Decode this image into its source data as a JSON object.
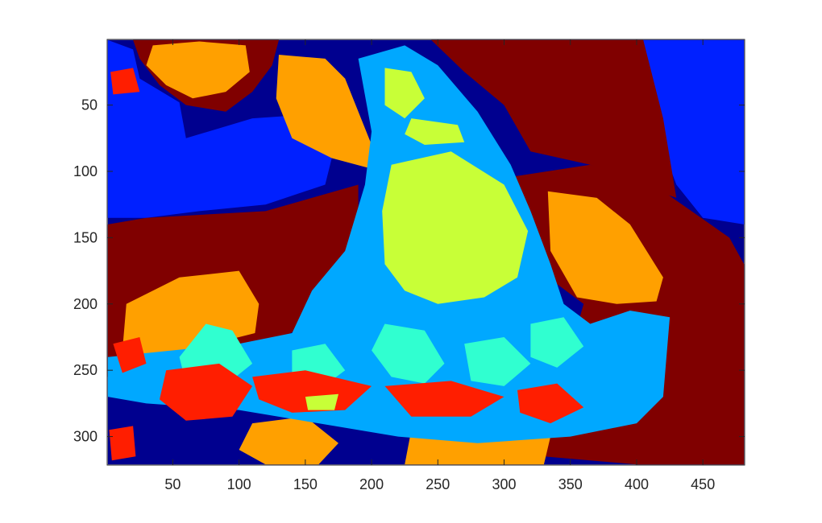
{
  "chart_data": {
    "type": "heatmap",
    "title": "",
    "xlabel": "",
    "ylabel": "",
    "xlim": [
      0.5,
      481.5
    ],
    "ylim": [
      0.5,
      321.5
    ],
    "y_direction": "reverse",
    "x_ticks": [
      50,
      100,
      150,
      200,
      250,
      300,
      350,
      400,
      450
    ],
    "x_tick_labels": [
      "50",
      "100",
      "150",
      "200",
      "250",
      "300",
      "350",
      "400",
      "450"
    ],
    "y_ticks": [
      50,
      100,
      150,
      200,
      250,
      300
    ],
    "y_tick_labels": [
      "50",
      "100",
      "150",
      "200",
      "250",
      "300"
    ],
    "grid": false,
    "colorbar": false,
    "colormap": "jet",
    "class_colors": [
      "#00008f",
      "#0020ff",
      "#00a8ff",
      "#30ffd0",
      "#c8ff37",
      "#ffa000",
      "#ff1e00",
      "#800000"
    ],
    "regions": [
      {
        "class": 0,
        "points": [
          [
            1,
            1
          ],
          [
            481,
            1
          ],
          [
            481,
            321
          ],
          [
            1,
            321
          ]
        ]
      },
      {
        "class": 1,
        "points": [
          [
            1,
            1
          ],
          [
            20,
            8
          ],
          [
            25,
            30
          ],
          [
            55,
            48
          ],
          [
            60,
            75
          ],
          [
            110,
            60
          ],
          [
            140,
            58
          ],
          [
            160,
            70
          ],
          [
            170,
            90
          ],
          [
            165,
            110
          ],
          [
            120,
            125
          ],
          [
            70,
            130
          ],
          [
            30,
            135
          ],
          [
            1,
            135
          ]
        ]
      },
      {
        "class": 1,
        "points": [
          [
            405,
            1
          ],
          [
            481,
            1
          ],
          [
            481,
            140
          ],
          [
            450,
            135
          ],
          [
            430,
            110
          ],
          [
            415,
            70
          ]
        ]
      },
      {
        "class": 7,
        "points": [
          [
            20,
            1
          ],
          [
            130,
            1
          ],
          [
            125,
            20
          ],
          [
            110,
            40
          ],
          [
            90,
            55
          ],
          [
            60,
            50
          ],
          [
            40,
            35
          ],
          [
            25,
            15
          ]
        ]
      },
      {
        "class": 7,
        "points": [
          [
            245,
            1
          ],
          [
            405,
            1
          ],
          [
            420,
            60
          ],
          [
            430,
            120
          ],
          [
            400,
            110
          ],
          [
            365,
            95
          ],
          [
            320,
            85
          ],
          [
            300,
            50
          ],
          [
            270,
            25
          ]
        ]
      },
      {
        "class": 7,
        "points": [
          [
            1,
            140
          ],
          [
            30,
            135
          ],
          [
            120,
            130
          ],
          [
            190,
            110
          ],
          [
            190,
            130
          ],
          [
            188,
            160
          ],
          [
            170,
            185
          ],
          [
            150,
            215
          ],
          [
            110,
            240
          ],
          [
            40,
            255
          ],
          [
            1,
            255
          ]
        ]
      },
      {
        "class": 7,
        "points": [
          [
            300,
            105
          ],
          [
            365,
            95
          ],
          [
            420,
            115
          ],
          [
            470,
            150
          ],
          [
            481,
            170
          ],
          [
            481,
            321
          ],
          [
            400,
            321
          ],
          [
            330,
            315
          ],
          [
            310,
            290
          ],
          [
            330,
            250
          ],
          [
            350,
            235
          ],
          [
            360,
            200
          ],
          [
            340,
            185
          ],
          [
            320,
            175
          ],
          [
            310,
            150
          ]
        ]
      },
      {
        "class": 5,
        "points": [
          [
            35,
            5
          ],
          [
            70,
            2
          ],
          [
            105,
            5
          ],
          [
            108,
            25
          ],
          [
            90,
            40
          ],
          [
            65,
            45
          ],
          [
            45,
            35
          ],
          [
            30,
            20
          ]
        ]
      },
      {
        "class": 5,
        "points": [
          [
            130,
            12
          ],
          [
            165,
            15
          ],
          [
            180,
            30
          ],
          [
            200,
            80
          ],
          [
            200,
            98
          ],
          [
            170,
            90
          ],
          [
            140,
            75
          ],
          [
            128,
            45
          ]
        ]
      },
      {
        "class": 5,
        "points": [
          [
            333,
            115
          ],
          [
            370,
            120
          ],
          [
            395,
            140
          ],
          [
            420,
            180
          ],
          [
            415,
            198
          ],
          [
            385,
            200
          ],
          [
            355,
            195
          ],
          [
            335,
            160
          ]
        ]
      },
      {
        "class": 5,
        "points": [
          [
            15,
            200
          ],
          [
            55,
            180
          ],
          [
            100,
            175
          ],
          [
            115,
            200
          ],
          [
            112,
            222
          ],
          [
            80,
            230
          ],
          [
            40,
            240
          ],
          [
            12,
            235
          ]
        ]
      },
      {
        "class": 5,
        "points": [
          [
            110,
            290
          ],
          [
            150,
            285
          ],
          [
            175,
            305
          ],
          [
            160,
            321
          ],
          [
            120,
            321
          ],
          [
            100,
            310
          ]
        ]
      },
      {
        "class": 5,
        "points": [
          [
            230,
            295
          ],
          [
            300,
            290
          ],
          [
            335,
            300
          ],
          [
            330,
            321
          ],
          [
            225,
            321
          ]
        ]
      },
      {
        "class": 2,
        "points": [
          [
            190,
            15
          ],
          [
            225,
            5
          ],
          [
            250,
            20
          ],
          [
            280,
            55
          ],
          [
            305,
            95
          ],
          [
            320,
            130
          ],
          [
            335,
            170
          ],
          [
            345,
            200
          ],
          [
            365,
            215
          ],
          [
            395,
            205
          ],
          [
            425,
            210
          ],
          [
            420,
            270
          ],
          [
            400,
            290
          ],
          [
            350,
            300
          ],
          [
            280,
            305
          ],
          [
            220,
            300
          ],
          [
            160,
            290
          ],
          [
            100,
            280
          ],
          [
            30,
            275
          ],
          [
            1,
            270
          ],
          [
            1,
            240
          ],
          [
            40,
            236
          ],
          [
            100,
            230
          ],
          [
            140,
            222
          ],
          [
            155,
            190
          ],
          [
            180,
            160
          ],
          [
            195,
            110
          ],
          [
            200,
            70
          ]
        ]
      },
      {
        "class": 4,
        "points": [
          [
            210,
            22
          ],
          [
            230,
            25
          ],
          [
            240,
            45
          ],
          [
            225,
            60
          ],
          [
            210,
            50
          ]
        ]
      },
      {
        "class": 4,
        "points": [
          [
            230,
            60
          ],
          [
            265,
            65
          ],
          [
            270,
            78
          ],
          [
            240,
            80
          ],
          [
            225,
            72
          ]
        ]
      },
      {
        "class": 4,
        "points": [
          [
            215,
            95
          ],
          [
            260,
            85
          ],
          [
            300,
            110
          ],
          [
            318,
            145
          ],
          [
            310,
            180
          ],
          [
            285,
            195
          ],
          [
            250,
            200
          ],
          [
            225,
            190
          ],
          [
            210,
            170
          ],
          [
            208,
            130
          ]
        ]
      },
      {
        "class": 3,
        "points": [
          [
            75,
            215
          ],
          [
            95,
            220
          ],
          [
            110,
            245
          ],
          [
            85,
            265
          ],
          [
            60,
            260
          ],
          [
            55,
            240
          ]
        ]
      },
      {
        "class": 3,
        "points": [
          [
            140,
            235
          ],
          [
            165,
            230
          ],
          [
            180,
            250
          ],
          [
            160,
            265
          ],
          [
            140,
            258
          ]
        ]
      },
      {
        "class": 3,
        "points": [
          [
            210,
            215
          ],
          [
            240,
            220
          ],
          [
            255,
            245
          ],
          [
            240,
            260
          ],
          [
            215,
            255
          ],
          [
            200,
            235
          ]
        ]
      },
      {
        "class": 3,
        "points": [
          [
            270,
            230
          ],
          [
            300,
            225
          ],
          [
            320,
            245
          ],
          [
            300,
            262
          ],
          [
            275,
            258
          ]
        ]
      },
      {
        "class": 3,
        "points": [
          [
            320,
            215
          ],
          [
            345,
            210
          ],
          [
            360,
            232
          ],
          [
            340,
            248
          ],
          [
            320,
            240
          ]
        ]
      },
      {
        "class": 6,
        "points": [
          [
            45,
            250
          ],
          [
            85,
            245
          ],
          [
            110,
            262
          ],
          [
            95,
            285
          ],
          [
            60,
            288
          ],
          [
            40,
            272
          ]
        ]
      },
      {
        "class": 6,
        "points": [
          [
            110,
            255
          ],
          [
            150,
            250
          ],
          [
            200,
            262
          ],
          [
            180,
            280
          ],
          [
            140,
            282
          ],
          [
            115,
            272
          ]
        ]
      },
      {
        "class": 6,
        "points": [
          [
            210,
            262
          ],
          [
            260,
            258
          ],
          [
            300,
            270
          ],
          [
            275,
            285
          ],
          [
            230,
            285
          ]
        ]
      },
      {
        "class": 6,
        "points": [
          [
            310,
            265
          ],
          [
            340,
            260
          ],
          [
            360,
            278
          ],
          [
            335,
            290
          ],
          [
            312,
            282
          ]
        ]
      },
      {
        "class": 6,
        "points": [
          [
            5,
            230
          ],
          [
            25,
            225
          ],
          [
            30,
            245
          ],
          [
            12,
            252
          ]
        ]
      },
      {
        "class": 6,
        "points": [
          [
            2,
            295
          ],
          [
            20,
            292
          ],
          [
            22,
            315
          ],
          [
            4,
            318
          ]
        ]
      },
      {
        "class": 6,
        "points": [
          [
            3,
            25
          ],
          [
            20,
            22
          ],
          [
            25,
            40
          ],
          [
            5,
            42
          ]
        ]
      },
      {
        "class": 4,
        "points": [
          [
            150,
            270
          ],
          [
            175,
            268
          ],
          [
            172,
            280
          ],
          [
            152,
            280
          ]
        ]
      }
    ]
  }
}
